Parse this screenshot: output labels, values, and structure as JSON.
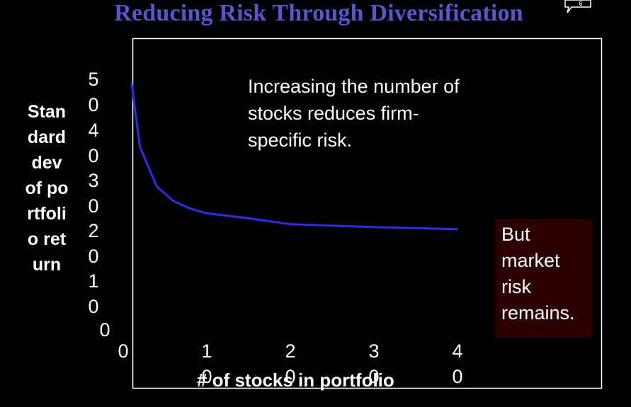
{
  "chart_data": {
    "type": "line",
    "title": "Reducing Risk Through Diversification",
    "xlabel": "# of stocks in portfolio",
    "ylabel": "Standard dev of portfolio return",
    "x_ticks": [
      "0",
      "10",
      "20",
      "30",
      "40"
    ],
    "y_ticks": [
      "0",
      "10",
      "20",
      "30",
      "40",
      "50"
    ],
    "xlim": [
      0,
      40
    ],
    "ylim": [
      0,
      50
    ],
    "grid": false,
    "legend": "none",
    "series": [
      {
        "x": [
          1,
          2,
          4,
          6,
          8,
          10,
          15,
          20,
          25,
          30,
          35,
          40
        ],
        "y": [
          50,
          37,
          29,
          26,
          24.5,
          23.5,
          22.5,
          21.3,
          21,
          20.7,
          20.5,
          20.3
        ],
        "color": "#2b2bf0"
      }
    ],
    "annotation": "Increasing the number of stocks reduces firm-specific risk.",
    "callout": "But market risk remains."
  },
  "corner_icon": "speech-bubble-icon",
  "corner_icon_label": "6"
}
